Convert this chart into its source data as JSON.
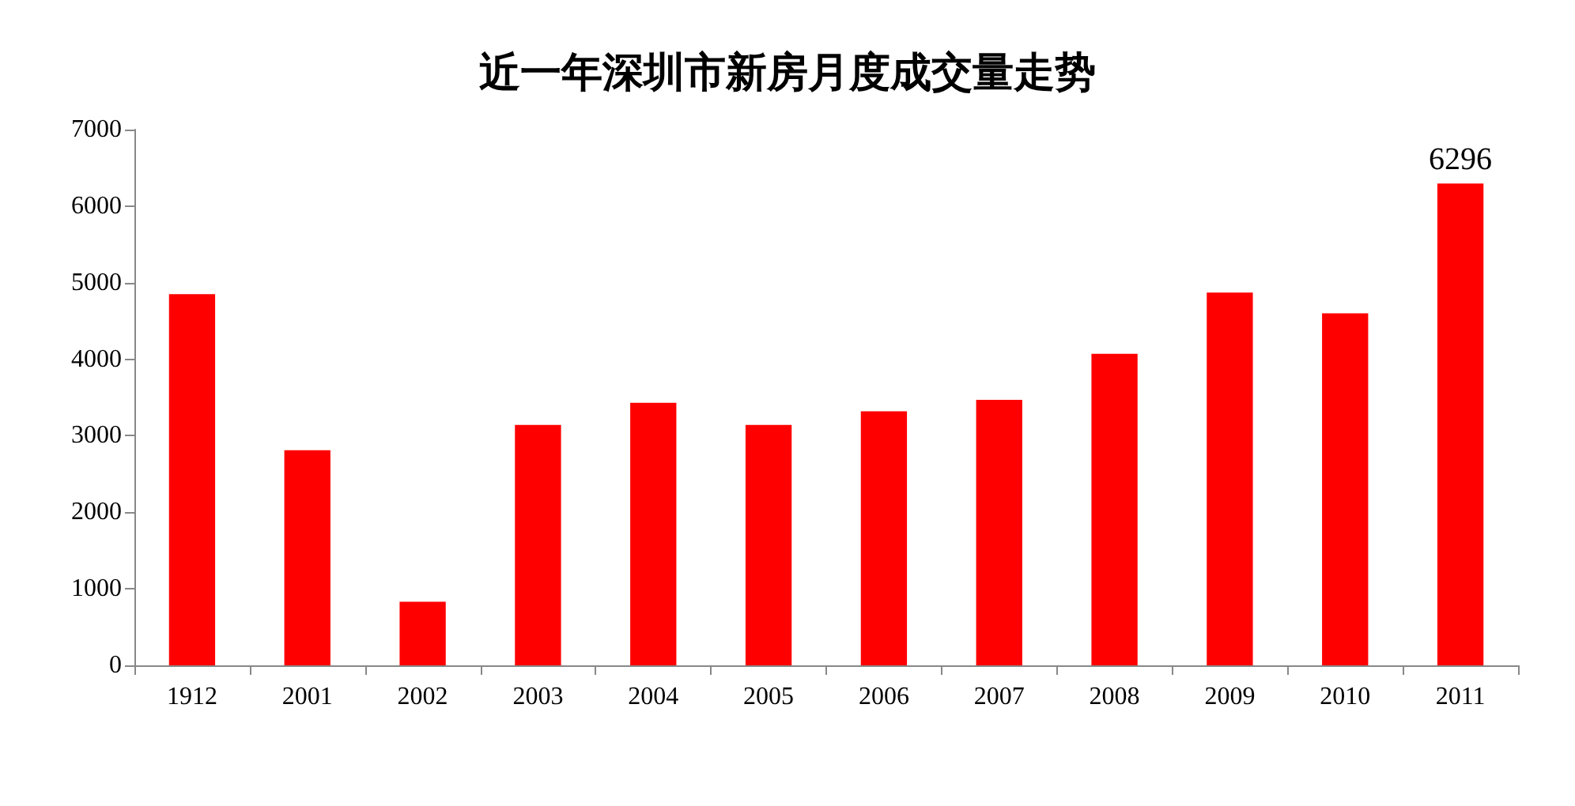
{
  "chart_data": {
    "type": "bar",
    "title": "近一年深圳市新房月度成交量走势",
    "categories": [
      "1912",
      "2001",
      "2002",
      "2003",
      "2004",
      "2005",
      "2006",
      "2007",
      "2008",
      "2009",
      "2010",
      "2011"
    ],
    "values": [
      4850,
      2810,
      830,
      3140,
      3430,
      3140,
      3320,
      3470,
      4070,
      4870,
      4600,
      6296
    ],
    "value_labels": [
      null,
      null,
      null,
      null,
      null,
      null,
      null,
      null,
      null,
      null,
      null,
      "6296"
    ],
    "color": "#ff0000",
    "ylim": [
      0,
      7000
    ],
    "yticks": [
      0,
      1000,
      2000,
      3000,
      4000,
      5000,
      6000,
      7000
    ],
    "grid": false
  }
}
